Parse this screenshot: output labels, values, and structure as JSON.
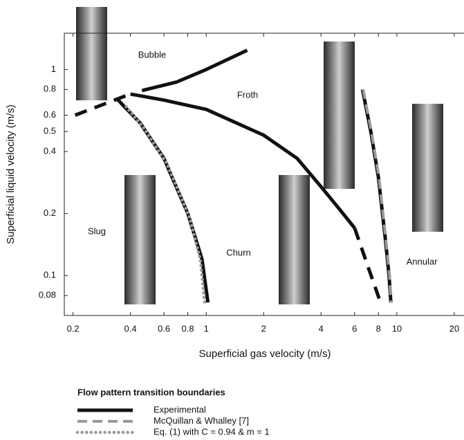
{
  "chart_data": {
    "type": "line",
    "x_label": "Superficial gas velocity (m/s)",
    "y_label": "Superficial liquid velocity (m/s)",
    "log_x": true,
    "log_y": true,
    "xlim": [
      0.18,
      22.5
    ],
    "ylim": [
      0.064,
      1.5
    ],
    "xticks": [
      0.2,
      0.4,
      0.6,
      0.8,
      1,
      2,
      4,
      6,
      8,
      10,
      20
    ],
    "yticks": [
      0.08,
      0.1,
      0.2,
      0.4,
      0.5,
      0.6,
      0.8,
      1
    ],
    "annotations": [
      "Bubble",
      "Froth",
      "Slug",
      "Churn",
      "Annular"
    ],
    "legend_title": "Flow pattern transition boundaries",
    "series": [
      {
        "name": "Experimental",
        "color": "#111111",
        "style": "solid",
        "lines": [
          {
            "dashed": true,
            "x": [
              0.205,
              0.4
            ],
            "y": [
              0.6,
              0.76
            ]
          },
          {
            "dashed": false,
            "x": [
              0.46,
              0.7,
              1.0,
              1.64
            ],
            "y": [
              0.79,
              0.87,
              1.0,
              1.24
            ]
          },
          {
            "dashed": false,
            "x": [
              0.4,
              0.6,
              1.0,
              2,
              3,
              4,
              5,
              6
            ],
            "y": [
              0.76,
              0.71,
              0.64,
              0.48,
              0.37,
              0.27,
              0.21,
              0.17
            ]
          },
          {
            "dashed": true,
            "x": [
              6,
              8.2
            ],
            "y": [
              0.17,
              0.074
            ]
          },
          {
            "dashed": false,
            "x": [
              0.34,
              0.45,
              0.6,
              0.8,
              0.95,
              1.02
            ],
            "y": [
              0.72,
              0.55,
              0.37,
              0.2,
              0.12,
              0.074
            ]
          },
          {
            "dashed": false,
            "x": [
              6.6,
              7.3,
              8.0,
              8.7,
              9.1,
              9.3
            ],
            "y": [
              0.8,
              0.5,
              0.3,
              0.15,
              0.1,
              0.074
            ]
          }
        ]
      },
      {
        "name": "McQuillan & Whalley [7]",
        "color": "#999999",
        "style": "dashed",
        "lines": [
          {
            "dashed": false,
            "x": [
              6.65,
              7.35,
              8.05,
              8.75,
              9.15,
              9.3
            ],
            "y": [
              0.8,
              0.5,
              0.3,
              0.15,
              0.1,
              0.074
            ]
          }
        ]
      },
      {
        "name": "Eq. (1) with C = 0.94 & m = 1",
        "color": "#999999",
        "style": "dotted",
        "lines": [
          {
            "dashed": false,
            "x": [
              0.38,
              0.47,
              0.62,
              0.82,
              0.93,
              0.98
            ],
            "y": [
              0.66,
              0.52,
              0.35,
              0.19,
              0.12,
              0.074
            ]
          }
        ]
      }
    ]
  }
}
